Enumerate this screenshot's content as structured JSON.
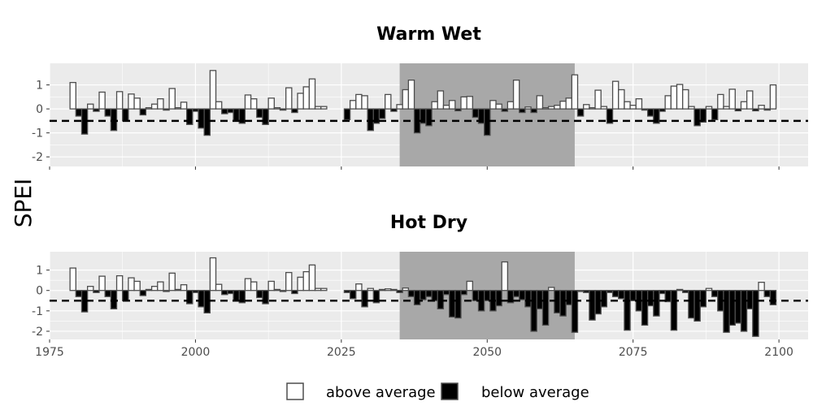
{
  "chart_data": {
    "type": "bar",
    "ylabel": "SPEI",
    "xlim": [
      1975,
      2105
    ],
    "ylim": [
      -2.4,
      1.9
    ],
    "x_ticks": [
      1975,
      2000,
      2025,
      2050,
      2075,
      2100
    ],
    "y_ticks": [
      -2,
      -1,
      0,
      1
    ],
    "threshold": -0.5,
    "highlight_period": [
      2035,
      2065
    ],
    "colors": {
      "panel_bg": "#ebebeb",
      "grid": "#ffffff",
      "highlight": "#a8a8a8",
      "above_fill": "#ffffff",
      "below_fill": "#000000",
      "bar_stroke": "#4d4d4d"
    },
    "legend": {
      "position": "bottom",
      "entries": [
        {
          "label": "above average",
          "fill": "#ffffff"
        },
        {
          "label": "below average",
          "fill": "#000000"
        }
      ]
    },
    "panels": [
      {
        "title": "Warm Wet",
        "x": [
          1979,
          1980,
          1981,
          1982,
          1983,
          1984,
          1985,
          1986,
          1987,
          1988,
          1989,
          1990,
          1991,
          1992,
          1993,
          1994,
          1995,
          1996,
          1997,
          1998,
          1999,
          2000,
          2001,
          2002,
          2003,
          2004,
          2005,
          2006,
          2007,
          2008,
          2009,
          2010,
          2011,
          2012,
          2013,
          2014,
          2015,
          2016,
          2017,
          2018,
          2019,
          2020,
          2021,
          2022,
          2026,
          2027,
          2028,
          2029,
          2030,
          2031,
          2032,
          2033,
          2034,
          2035,
          2036,
          2037,
          2038,
          2039,
          2040,
          2041,
          2042,
          2043,
          2044,
          2045,
          2046,
          2047,
          2048,
          2049,
          2050,
          2051,
          2052,
          2053,
          2054,
          2055,
          2056,
          2057,
          2058,
          2059,
          2060,
          2061,
          2062,
          2063,
          2064,
          2065,
          2066,
          2067,
          2068,
          2069,
          2070,
          2071,
          2072,
          2073,
          2074,
          2075,
          2076,
          2077,
          2078,
          2079,
          2080,
          2081,
          2082,
          2083,
          2084,
          2085,
          2086,
          2087,
          2088,
          2089,
          2090,
          2091,
          2092,
          2093,
          2094,
          2095,
          2096,
          2097,
          2098,
          2099
        ],
        "values": [
          1.1,
          -0.3,
          -1.05,
          0.2,
          -0.1,
          0.7,
          -0.3,
          -0.9,
          0.72,
          -0.5,
          0.62,
          0.45,
          -0.25,
          0.05,
          0.2,
          0.42,
          -0.05,
          0.85,
          0.05,
          0.28,
          -0.65,
          -0.1,
          -0.8,
          -1.1,
          1.6,
          0.3,
          -0.2,
          -0.15,
          -0.5,
          -0.6,
          0.58,
          0.42,
          -0.35,
          -0.65,
          0.45,
          0.05,
          -0.05,
          0.88,
          -0.15,
          0.65,
          0.92,
          1.25,
          0.1,
          0.1,
          -0.45,
          0.35,
          0.6,
          0.55,
          -0.9,
          -0.6,
          -0.4,
          0.6,
          -0.1,
          0.18,
          0.8,
          1.2,
          -1.0,
          -0.6,
          -0.7,
          0.3,
          0.75,
          0.15,
          0.35,
          -0.08,
          0.5,
          0.52,
          -0.35,
          -0.6,
          -1.1,
          0.35,
          0.2,
          -0.1,
          0.3,
          1.2,
          -0.15,
          0.08,
          -0.15,
          0.55,
          0.05,
          0.1,
          0.15,
          0.32,
          0.45,
          1.42,
          -0.3,
          0.18,
          0.05,
          0.78,
          0.1,
          -0.6,
          1.15,
          0.8,
          0.3,
          0.15,
          0.42,
          -0.05,
          -0.3,
          -0.6,
          -0.1,
          0.55,
          0.95,
          1.02,
          0.8,
          0.1,
          -0.7,
          -0.55,
          0.1,
          -0.45,
          0.6,
          0.1,
          0.82,
          -0.08,
          0.3,
          0.75,
          -0.08,
          0.15,
          -0.05,
          1.0
        ]
      },
      {
        "title": "Hot Dry",
        "x": [
          1979,
          1980,
          1981,
          1982,
          1983,
          1984,
          1985,
          1986,
          1987,
          1988,
          1989,
          1990,
          1991,
          1992,
          1993,
          1994,
          1995,
          1996,
          1997,
          1998,
          1999,
          2000,
          2001,
          2002,
          2003,
          2004,
          2005,
          2006,
          2007,
          2008,
          2009,
          2010,
          2011,
          2012,
          2013,
          2014,
          2015,
          2016,
          2017,
          2018,
          2019,
          2020,
          2021,
          2022,
          2026,
          2027,
          2028,
          2029,
          2030,
          2031,
          2032,
          2033,
          2034,
          2035,
          2036,
          2037,
          2038,
          2039,
          2040,
          2041,
          2042,
          2043,
          2044,
          2045,
          2046,
          2047,
          2048,
          2049,
          2050,
          2051,
          2052,
          2053,
          2054,
          2055,
          2056,
          2057,
          2058,
          2059,
          2060,
          2061,
          2062,
          2063,
          2064,
          2065,
          2066,
          2067,
          2068,
          2069,
          2070,
          2071,
          2072,
          2073,
          2074,
          2075,
          2076,
          2077,
          2078,
          2079,
          2080,
          2081,
          2082,
          2083,
          2084,
          2085,
          2086,
          2087,
          2088,
          2089,
          2090,
          2091,
          2092,
          2093,
          2094,
          2095,
          2096,
          2097,
          2098,
          2099
        ],
        "values": [
          1.1,
          -0.3,
          -1.05,
          0.2,
          -0.1,
          0.7,
          -0.3,
          -0.9,
          0.72,
          -0.5,
          0.62,
          0.45,
          -0.25,
          0.05,
          0.2,
          0.42,
          -0.05,
          0.85,
          0.05,
          0.28,
          -0.65,
          -0.1,
          -0.8,
          -1.1,
          1.6,
          0.3,
          -0.2,
          -0.15,
          -0.5,
          -0.6,
          0.58,
          0.42,
          -0.35,
          -0.65,
          0.45,
          0.05,
          -0.05,
          0.88,
          -0.15,
          0.65,
          0.92,
          1.25,
          0.1,
          0.1,
          -0.1,
          -0.4,
          0.32,
          -0.8,
          0.1,
          -0.6,
          0.05,
          0.08,
          0.05,
          -0.1,
          0.12,
          -0.3,
          -0.7,
          -0.45,
          -0.3,
          -0.5,
          -0.9,
          -0.2,
          -1.3,
          -1.35,
          -0.2,
          0.45,
          -0.5,
          -1.0,
          -0.5,
          -1.0,
          -0.75,
          1.4,
          -0.6,
          -0.3,
          -0.45,
          -0.8,
          -2.0,
          -0.9,
          -1.7,
          0.15,
          -1.1,
          -1.25,
          -0.7,
          -2.05,
          -0.05,
          -0.1,
          -1.45,
          -1.15,
          -0.8,
          -0.1,
          -0.3,
          -0.4,
          -1.95,
          -0.5,
          -1.0,
          -1.7,
          -0.75,
          -1.25,
          -0.15,
          -0.55,
          -1.95,
          0.05,
          -0.1,
          -1.35,
          -1.5,
          -0.8,
          0.1,
          -0.3,
          -1.0,
          -2.05,
          -1.7,
          -1.6,
          -2.0,
          -0.9,
          -2.25,
          0.4,
          -0.3,
          -0.7
        ]
      }
    ]
  }
}
